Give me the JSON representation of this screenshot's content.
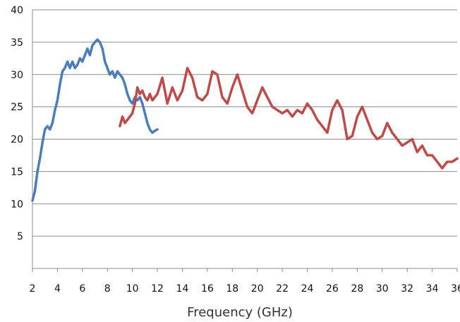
{
  "chart_data": {
    "type": "line",
    "title": "",
    "xlabel": "Frequency (GHz)",
    "ylabel": "",
    "xlim": [
      2,
      36
    ],
    "ylim": [
      0,
      40
    ],
    "grid": true,
    "legend": "none",
    "x_ticks": [
      "2",
      "4",
      "6",
      "8",
      "10",
      "12",
      "14",
      "16",
      "18",
      "20",
      "22",
      "24",
      "26",
      "28",
      "30",
      "32",
      "34",
      "36"
    ],
    "y_ticks": [
      "5",
      "10",
      "15",
      "20",
      "25",
      "30",
      "35",
      "40"
    ],
    "colors": {
      "series_1": "#4a7ebb",
      "series_2": "#be4b48",
      "grid": "#8c8c8c"
    },
    "series": [
      {
        "x": [
          2.0,
          2.2,
          2.4,
          2.6,
          2.8,
          3.0,
          3.2,
          3.4,
          3.6,
          3.8,
          4.0,
          4.2,
          4.4,
          4.6,
          4.8,
          5.0,
          5.2,
          5.4,
          5.6,
          5.8,
          6.0,
          6.2,
          6.4,
          6.6,
          6.8,
          7.0,
          7.2,
          7.4,
          7.6,
          7.8,
          8.0,
          8.2,
          8.4,
          8.6,
          8.8,
          9.0,
          9.2,
          9.4,
          9.6,
          9.8,
          10.0,
          10.2,
          10.4,
          10.6,
          10.8,
          11.0,
          11.2,
          11.4,
          11.6,
          11.8,
          12.0
        ],
        "y": [
          10.5,
          12.0,
          15.0,
          17.0,
          19.5,
          21.5,
          22.0,
          21.5,
          22.5,
          24.5,
          26.0,
          28.5,
          30.5,
          31.0,
          32.0,
          31.0,
          32.0,
          31.0,
          31.5,
          32.5,
          32.0,
          33.0,
          34.0,
          33.0,
          34.5,
          35.0,
          35.4,
          35.0,
          34.0,
          32.0,
          31.0,
          30.0,
          30.5,
          29.5,
          30.5,
          30.0,
          29.5,
          28.5,
          27.0,
          26.0,
          25.5,
          26.5,
          26.0,
          26.5,
          25.5,
          24.0,
          22.5,
          21.5,
          21.0,
          21.3,
          21.5
        ]
      },
      {
        "x": [
          9.0,
          9.2,
          9.4,
          9.6,
          9.8,
          10.0,
          10.2,
          10.4,
          10.6,
          10.8,
          11.0,
          11.2,
          11.4,
          11.6,
          11.8,
          12.0,
          12.4,
          12.8,
          13.2,
          13.6,
          14.0,
          14.4,
          14.8,
          15.2,
          15.6,
          16.0,
          16.4,
          16.8,
          17.2,
          17.6,
          18.0,
          18.4,
          18.8,
          19.2,
          19.6,
          20.0,
          20.4,
          20.8,
          21.2,
          21.6,
          22.0,
          22.4,
          22.8,
          23.2,
          23.6,
          24.0,
          24.4,
          24.8,
          25.2,
          25.6,
          26.0,
          26.4,
          26.8,
          27.2,
          27.6,
          28.0,
          28.4,
          28.8,
          29.2,
          29.6,
          30.0,
          30.4,
          30.8,
          31.2,
          31.6,
          32.0,
          32.4,
          32.8,
          33.2,
          33.6,
          34.0,
          34.4,
          34.8,
          35.2,
          35.6,
          36.0
        ],
        "y": [
          22.0,
          23.5,
          22.5,
          23.0,
          23.5,
          24.0,
          25.5,
          28.0,
          27.0,
          27.5,
          26.5,
          26.0,
          27.0,
          26.0,
          26.5,
          27.0,
          29.5,
          25.5,
          28.0,
          26.0,
          27.5,
          31.0,
          29.5,
          26.5,
          26.0,
          27.0,
          30.5,
          30.0,
          26.5,
          25.5,
          28.0,
          30.0,
          27.5,
          25.0,
          24.0,
          26.0,
          28.0,
          26.5,
          25.0,
          24.5,
          24.0,
          24.5,
          23.5,
          24.5,
          24.0,
          25.5,
          24.5,
          23.0,
          22.0,
          21.0,
          24.5,
          26.0,
          24.5,
          20.0,
          20.5,
          23.5,
          25.0,
          23.0,
          21.0,
          20.0,
          20.5,
          22.5,
          21.0,
          20.0,
          19.0,
          19.5,
          20.0,
          18.0,
          19.0,
          17.5,
          17.5,
          16.5,
          15.5,
          16.5,
          16.5,
          17.0
        ]
      }
    ]
  }
}
